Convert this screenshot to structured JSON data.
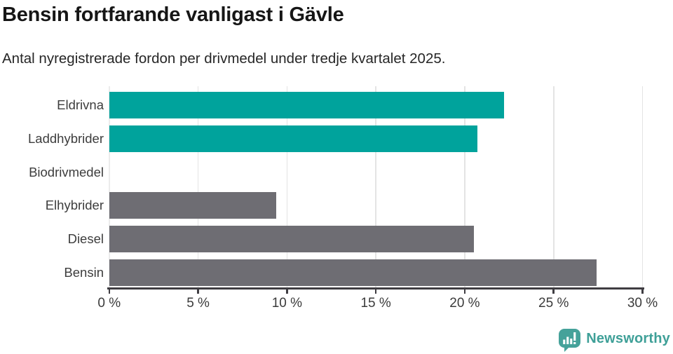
{
  "header": {
    "title": "Bensin fortfarande vanligast i Gävle",
    "subtitle": "Antal nyregistrerade fordon per drivmedel under tredje kvartalet 2025."
  },
  "chart_data": {
    "type": "bar",
    "orientation": "horizontal",
    "title": "Bensin fortfarande vanligast i Gävle",
    "subtitle": "Antal nyregistrerade fordon per drivmedel under tredje kvartalet 2025.",
    "categories": [
      "Eldrivna",
      "Laddhybrider",
      "Biodrivmedel",
      "Elhybrider",
      "Diesel",
      "Bensin"
    ],
    "values": [
      22.2,
      20.7,
      0,
      9.4,
      20.5,
      27.4
    ],
    "unit": "%",
    "xlim": [
      0,
      30
    ],
    "x_ticks": [
      0,
      5,
      10,
      15,
      20,
      25,
      30
    ],
    "x_tick_labels": [
      "0 %",
      "5 %",
      "10 %",
      "15 %",
      "20 %",
      "25 %",
      "30 %"
    ],
    "grid": true,
    "legend": false,
    "colors": {
      "highlight": "#00a39c",
      "default": "#6e6d73"
    },
    "bar_color_keys": [
      "highlight",
      "highlight",
      "default",
      "default",
      "default",
      "default"
    ]
  },
  "footer": {
    "brand_label": "Newsworthy",
    "brand_color": "#3fa098",
    "logo_icon": "newsworthy-bar-chart-bubble"
  }
}
